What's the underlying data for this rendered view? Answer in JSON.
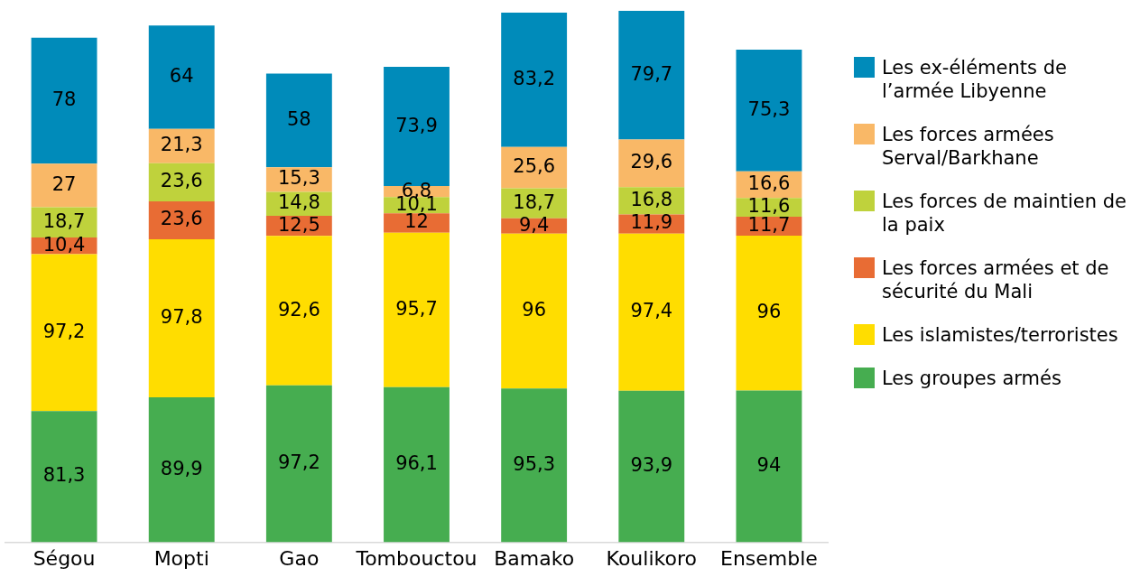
{
  "chart_data": {
    "type": "bar",
    "stacked": true,
    "grid": false,
    "legend": "right",
    "tick_labels": "x",
    "categories": [
      "Ségou",
      "Mopti",
      "Gao",
      "Tombouctou",
      "Bamako",
      "Koulikoro",
      "Ensemble"
    ],
    "series": [
      {
        "name": "Les groupes armés",
        "color": "#46ad50",
        "values": [
          81.3,
          89.9,
          97.2,
          96.1,
          95.3,
          93.9,
          94
        ],
        "value_labels": [
          "81,3",
          "89,9",
          "97,2",
          "96,1",
          "95,3",
          "93,9",
          "94"
        ]
      },
      {
        "name": "Les islamistes/terroristes",
        "color": "#ffdd00",
        "values": [
          97.2,
          97.8,
          92.6,
          95.7,
          96,
          97.4,
          96
        ],
        "value_labels": [
          "97,2",
          "97,8",
          "92,6",
          "95,7",
          "96",
          "97,4",
          "96"
        ]
      },
      {
        "name": "Les forces armées et de sécurité du Mali",
        "color": "#e86c34",
        "values": [
          10.4,
          23.6,
          12.5,
          12,
          9.4,
          11.9,
          11.7
        ],
        "value_labels": [
          "10,4",
          "23,6",
          "12,5",
          "12",
          "9,4",
          "11,9",
          "11,7"
        ]
      },
      {
        "name": "Les forces de maintien de la paix",
        "color": "#bfd23c",
        "values": [
          18.7,
          23.6,
          14.8,
          10.1,
          18.7,
          16.8,
          11.6
        ],
        "value_labels": [
          "18,7",
          "23,6",
          "14,8",
          "10,1",
          "18,7",
          "16,8",
          "11,6"
        ]
      },
      {
        "name": "Les forces armées Serval/Barkhane",
        "color": "#f9b867",
        "values": [
          27,
          21.3,
          15.3,
          6.8,
          25.6,
          29.6,
          16.6
        ],
        "value_labels": [
          "27",
          "21,3",
          "15,3",
          "6,8",
          "25,6",
          "29,6",
          "16,6"
        ]
      },
      {
        "name": "Les ex-éléments de l’armée Libyenne",
        "color": "#008bba",
        "values": [
          78,
          64,
          58,
          73.9,
          83.2,
          79.7,
          75.3
        ],
        "value_labels": [
          "78",
          "64",
          "58",
          "73,9",
          "83,2",
          "79,7",
          "75,3"
        ]
      }
    ]
  }
}
